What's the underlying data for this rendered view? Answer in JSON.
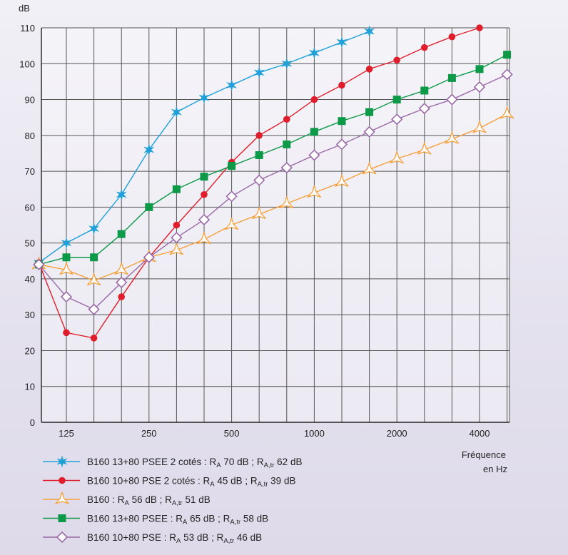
{
  "chart_data": {
    "type": "line",
    "ylabel": "dB",
    "xlabel_line1": "Fréquence",
    "xlabel_line2": "en Hz",
    "ylim": [
      0,
      110
    ],
    "yticks": [
      0,
      10,
      20,
      30,
      40,
      50,
      60,
      70,
      80,
      90,
      100,
      110
    ],
    "x": [
      100,
      125,
      160,
      200,
      250,
      315,
      400,
      500,
      630,
      800,
      1000,
      1250,
      1600,
      2000,
      2500,
      3150,
      4000,
      5000
    ],
    "xtick_labels": [
      {
        "at": 125,
        "label": "125"
      },
      {
        "at": 250,
        "label": "250"
      },
      {
        "at": 500,
        "label": "500"
      },
      {
        "at": 1000,
        "label": "1000"
      },
      {
        "at": 2000,
        "label": "2000"
      },
      {
        "at": 4000,
        "label": "4000"
      }
    ],
    "grid": true,
    "series": [
      {
        "key": "s1",
        "marker": "star",
        "color": "#1fa0d8",
        "values": [
          44.5,
          50,
          54,
          63.5,
          76,
          86.5,
          90.5,
          94,
          97.5,
          100,
          103,
          106,
          109,
          null,
          null,
          null,
          null,
          null
        ],
        "legend": {
          "pre": "B160 13+80 PSEE 2 cotés : R",
          "s1": "A",
          "mid": " 70 dB ; R",
          "s2": "A,tr",
          "post": " 62 dB"
        }
      },
      {
        "key": "s2",
        "marker": "circle",
        "color": "#e01e2b",
        "values": [
          44.5,
          25,
          23.5,
          35,
          46,
          55,
          63.5,
          72.5,
          80,
          84.5,
          90,
          94,
          98.5,
          101,
          104.5,
          107.5,
          110,
          null
        ],
        "legend": {
          "pre": "B160 10+80 PSE 2 cotés : R",
          "s1": "A",
          "mid": " 45 dB ; R",
          "s2": "A,tr",
          "post": " 39 dB"
        }
      },
      {
        "key": "s3",
        "marker": "triangle",
        "color": "#f5a03c",
        "values": [
          44,
          42.5,
          39.5,
          42.5,
          46,
          48,
          51,
          55,
          58,
          61,
          64,
          67,
          70.5,
          73.5,
          76,
          79,
          82,
          86
        ],
        "legend": {
          "pre": "B160 : R",
          "s1": "A",
          "mid": " 56 dB ; R",
          "s2": "A,tr",
          "post": " 51 dB"
        }
      },
      {
        "key": "s4",
        "marker": "square",
        "color": "#0d9a48",
        "values": [
          44,
          46,
          46,
          52.5,
          60,
          65,
          68.5,
          71.5,
          74.5,
          77.5,
          81,
          84,
          86.5,
          90,
          92.5,
          96,
          98.5,
          102.5
        ],
        "legend": {
          "pre": "B160 13+80 PSEE : R",
          "s1": "A",
          "mid": " 65 dB ; R",
          "s2": "A,tr",
          "post": " 58 dB"
        }
      },
      {
        "key": "s5",
        "marker": "diamond",
        "color": "#9a6aa8",
        "values": [
          44,
          35,
          31.5,
          39,
          46,
          51.5,
          56.5,
          63,
          67.5,
          71,
          74.5,
          77.5,
          81,
          84.5,
          87.5,
          90,
          93.5,
          97
        ],
        "legend": {
          "pre": "B160 10+80 PSE : R",
          "s1": "A",
          "mid": " 53 dB ; R",
          "s2": "A,tr",
          "post": " 46 dB"
        }
      }
    ]
  }
}
